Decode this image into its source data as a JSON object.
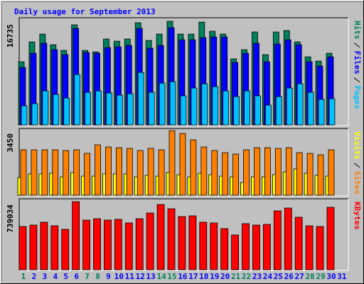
{
  "chart_data": [
    {
      "type": "bar",
      "title": "Daily usage for September 2013",
      "ylim": [
        0,
        16735
      ],
      "yticks": [
        16735
      ],
      "series": [
        {
          "name": "Hits",
          "color": "#00805C",
          "values": [
            10200,
            13410,
            14670,
            12950,
            12030,
            16160,
            12030,
            11800,
            13870,
            13520,
            13870,
            16500,
            13640,
            14670,
            16735,
            14670,
            14670,
            16600,
            15130,
            14670,
            10660,
            12150,
            15010,
            11350,
            15010,
            15240,
            13410,
            11000,
            10310,
            11570,
            null
          ]
        },
        {
          "name": "Files",
          "color": "#0000FF",
          "values": [
            9280,
            11570,
            13180,
            12150,
            11350,
            15590,
            11690,
            11570,
            12490,
            12610,
            12840,
            15590,
            12380,
            12840,
            15700,
            13750,
            13750,
            14100,
            14210,
            14210,
            10080,
            11570,
            13180,
            10200,
            13060,
            13750,
            12950,
            10200,
            9510,
            11000,
            null
          ]
        },
        {
          "name": "Pages",
          "color": "#00C0FF",
          "values": [
            3090,
            3440,
            5500,
            4930,
            4350,
            8140,
            5270,
            5500,
            5160,
            4810,
            5040,
            8480,
            5270,
            6760,
            6990,
            4700,
            5960,
            6650,
            6190,
            5500,
            4580,
            5500,
            4700,
            3210,
            4580,
            5960,
            6650,
            5270,
            4130,
            4240,
            null
          ]
        }
      ]
    },
    {
      "type": "bar",
      "ylim": [
        0,
        3450
      ],
      "yticks": [
        3450
      ],
      "series": [
        {
          "name": "Visits",
          "color": "#FFFF00",
          "values": [
            948,
            1137,
            1137,
            1175,
            985,
            1213,
            1023,
            1023,
            1137,
            1137,
            1137,
            985,
            1061,
            1023,
            1213,
            1099,
            985,
            1175,
            1099,
            1023,
            985,
            682,
            985,
            985,
            1099,
            1251,
            1402,
            1175,
            1061,
            1023,
            null
          ]
        },
        {
          "name": "Sites",
          "color": "#FF8000",
          "values": [
            2426,
            2426,
            2426,
            2426,
            2388,
            2426,
            2236,
            2691,
            2577,
            2539,
            2501,
            2388,
            2501,
            2426,
            3450,
            3297,
            2956,
            2577,
            2388,
            2274,
            2198,
            2426,
            2539,
            2539,
            2501,
            2539,
            2274,
            2236,
            2160,
            2426,
            null
          ]
        }
      ]
    },
    {
      "type": "bar",
      "ylim": [
        0,
        739034
      ],
      "yticks": [
        739034
      ],
      "categories": [
        "1",
        "2",
        "3",
        "4",
        "5",
        "6",
        "7",
        "8",
        "9",
        "10",
        "11",
        "12",
        "13",
        "14",
        "15",
        "16",
        "17",
        "18",
        "19",
        "20",
        "21",
        "22",
        "23",
        "24",
        "25",
        "26",
        "27",
        "28",
        "29",
        "30",
        "31"
      ],
      "category_colors": [
        "#00805C",
        "#0000FF",
        "#0000FF",
        "#0000FF",
        "#0000FF",
        "#0000FF",
        "#00805C",
        "#00805C",
        "#0000FF",
        "#0000FF",
        "#0000FF",
        "#0000FF",
        "#0000FF",
        "#00805C",
        "#00805C",
        "#0000FF",
        "#0000FF",
        "#0000FF",
        "#0000FF",
        "#0000FF",
        "#00805C",
        "#00805C",
        "#0000FF",
        "#0000FF",
        "#0000FF",
        "#0000FF",
        "#0000FF",
        "#00805C",
        "#00805C",
        "#0000FF",
        "#0000FF"
      ],
      "series": [
        {
          "name": "KBytes",
          "color": "#FF0000",
          "values": [
            469600,
            484970,
            515770,
            477280,
            438790,
            739034,
            538860,
            554260,
            538860,
            546560,
            508070,
            554260,
            615840,
            708220,
            662030,
            577350,
            585050,
            515770,
            508070,
            446480,
            377200,
            500370,
            484970,
            492670,
            638930,
            669730,
            569650,
            477280,
            469600,
            677420,
            null
          ]
        }
      ]
    }
  ]
}
